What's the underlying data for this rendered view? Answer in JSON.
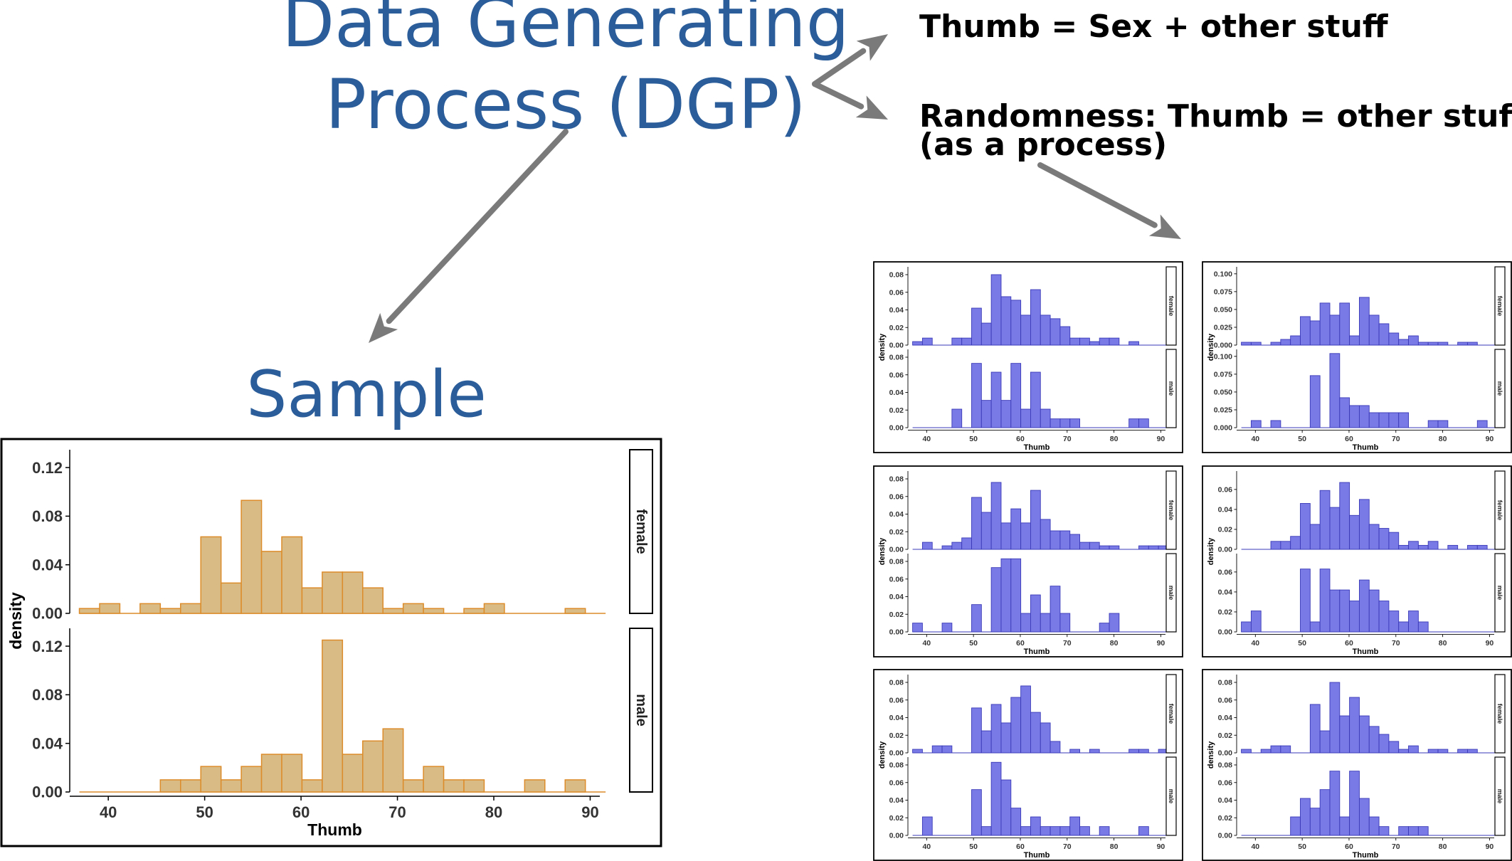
{
  "diagram": {
    "title_line1": "Data Generating",
    "title_line2": "Process (DGP)",
    "sample_label": "Sample",
    "model_text": "Thumb = Sex + other stuff",
    "randomness_line1": "Randomness: Thumb = other stuff",
    "randomness_line2": "(as a process)",
    "title_color": "#2a5d9a",
    "arrow_color": "#7a7a7a",
    "sample_fill": "#d9bb86",
    "sample_stroke": "#dc8c2a",
    "sim_fill": "#7a7ae6",
    "sim_stroke": "#3a3ab8"
  },
  "chart_data": [
    {
      "type": "bar",
      "role": "sample",
      "xlabel": "Thumb",
      "ylabel": "density",
      "xlim": [
        36,
        91
      ],
      "xticks": [
        40,
        50,
        60,
        70,
        80,
        90
      ],
      "bin_start": 37,
      "bin_width": 2.1,
      "panels": [
        {
          "label": "female",
          "ylim": [
            0,
            0.13
          ],
          "yticks": [
            "0.00",
            "0.04",
            "0.08",
            "0.12"
          ],
          "values": [
            0.004,
            0.008,
            0,
            0.008,
            0.004,
            0.008,
            0.063,
            0.025,
            0.093,
            0.051,
            0.063,
            0.021,
            0.034,
            0.034,
            0.021,
            0.004,
            0.008,
            0.004,
            0,
            0.004,
            0.008,
            0,
            0,
            0,
            0.004,
            0
          ]
        },
        {
          "label": "male",
          "ylim": [
            0,
            0.13
          ],
          "yticks": [
            "0.00",
            "0.04",
            "0.08",
            "0.12"
          ],
          "values": [
            0,
            0,
            0,
            0,
            0.01,
            0.01,
            0.021,
            0.01,
            0.021,
            0.031,
            0.031,
            0.01,
            0.125,
            0.031,
            0.042,
            0.052,
            0.01,
            0.021,
            0.01,
            0.01,
            0,
            0,
            0.01,
            0,
            0.01,
            0
          ]
        }
      ]
    },
    {
      "type": "bar",
      "role": "simulation",
      "xlabel": "Thumb",
      "ylabel": "density",
      "xlim": [
        36,
        91
      ],
      "xticks": [
        40,
        50,
        60,
        70,
        80,
        90
      ],
      "bin_start": 37,
      "bin_width": 2.1,
      "panels": [
        {
          "label": "female",
          "ylim": [
            0,
            0.085
          ],
          "yticks": [
            "0.00",
            "0.02",
            "0.04",
            "0.06",
            "0.08"
          ],
          "values": [
            0.004,
            0.008,
            0,
            0,
            0.008,
            0.008,
            0.042,
            0.025,
            0.08,
            0.055,
            0.051,
            0.034,
            0.063,
            0.034,
            0.03,
            0.021,
            0.008,
            0.008,
            0.004,
            0.008,
            0.008,
            0,
            0.004,
            0,
            0,
            0
          ]
        },
        {
          "label": "male",
          "ylim": [
            0,
            0.085
          ],
          "yticks": [
            "0.00",
            "0.02",
            "0.04",
            "0.06",
            "0.08"
          ],
          "values": [
            0,
            0,
            0,
            0,
            0.021,
            0,
            0.073,
            0.031,
            0.063,
            0.031,
            0.073,
            0.021,
            0.063,
            0.021,
            0.01,
            0.01,
            0.01,
            0,
            0,
            0,
            0,
            0,
            0.01,
            0.01,
            0,
            0
          ]
        }
      ]
    },
    {
      "type": "bar",
      "role": "simulation",
      "xlabel": "Thumb",
      "ylabel": "density",
      "xlim": [
        36,
        91
      ],
      "xticks": [
        40,
        50,
        60,
        70,
        80,
        90
      ],
      "bin_start": 37,
      "bin_width": 2.1,
      "panels": [
        {
          "label": "female",
          "ylim": [
            0,
            0.105
          ],
          "yticks": [
            "0.000",
            "0.025",
            "0.050",
            "0.075",
            "0.100"
          ],
          "values": [
            0.004,
            0.004,
            0,
            0.004,
            0.008,
            0.013,
            0.04,
            0.034,
            0.059,
            0.042,
            0.059,
            0.013,
            0.067,
            0.042,
            0.03,
            0.017,
            0.008,
            0.013,
            0.004,
            0.004,
            0.004,
            0,
            0.004,
            0.004,
            0,
            0
          ]
        },
        {
          "label": "male",
          "ylim": [
            0,
            0.105
          ],
          "yticks": [
            "0.000",
            "0.025",
            "0.050",
            "0.075",
            "0.100"
          ],
          "values": [
            0,
            0.01,
            0,
            0.01,
            0,
            0,
            0,
            0.073,
            0,
            0.104,
            0.042,
            0.031,
            0.031,
            0.021,
            0.021,
            0.021,
            0.021,
            0,
            0,
            0.01,
            0.01,
            0,
            0,
            0,
            0.01,
            0
          ]
        }
      ]
    },
    {
      "type": "bar",
      "role": "simulation",
      "xlabel": "Thumb",
      "ylabel": "density",
      "xlim": [
        36,
        91
      ],
      "xticks": [
        40,
        50,
        60,
        70,
        80,
        90
      ],
      "bin_start": 37,
      "bin_width": 2.1,
      "panels": [
        {
          "label": "female",
          "ylim": [
            0,
            0.085
          ],
          "yticks": [
            "0.00",
            "0.02",
            "0.04",
            "0.06",
            "0.08"
          ],
          "values": [
            0,
            0.008,
            0,
            0.004,
            0.008,
            0.013,
            0.059,
            0.042,
            0.076,
            0.03,
            0.046,
            0.03,
            0.067,
            0.034,
            0.021,
            0.021,
            0.017,
            0.008,
            0.008,
            0.004,
            0.004,
            0,
            0,
            0.004,
            0.004,
            0.004
          ]
        },
        {
          "label": "male",
          "ylim": [
            0,
            0.085
          ],
          "yticks": [
            "0.00",
            "0.02",
            "0.04",
            "0.06",
            "0.08"
          ],
          "values": [
            0.01,
            0,
            0,
            0.01,
            0,
            0,
            0.031,
            0,
            0.073,
            0.083,
            0.083,
            0.021,
            0.042,
            0.021,
            0.052,
            0.021,
            0,
            0,
            0,
            0.01,
            0.021,
            0,
            0,
            0,
            0,
            0
          ]
        }
      ]
    },
    {
      "type": "bar",
      "role": "simulation",
      "xlabel": "Thumb",
      "ylabel": "density",
      "xlim": [
        36,
        91
      ],
      "xticks": [
        40,
        50,
        60,
        70,
        80,
        90
      ],
      "bin_start": 37,
      "bin_width": 2.1,
      "panels": [
        {
          "label": "female",
          "ylim": [
            0,
            0.075
          ],
          "yticks": [
            "0.00",
            "0.02",
            "0.04",
            "0.06"
          ],
          "values": [
            0,
            0,
            0,
            0.008,
            0.008,
            0.013,
            0.046,
            0.025,
            0.059,
            0.042,
            0.067,
            0.034,
            0.05,
            0.025,
            0.021,
            0.017,
            0.004,
            0.008,
            0.004,
            0.008,
            0,
            0.004,
            0,
            0.004,
            0.004,
            0
          ]
        },
        {
          "label": "male",
          "ylim": [
            0,
            0.075
          ],
          "yticks": [
            "0.00",
            "0.02",
            "0.04",
            "0.06"
          ],
          "values": [
            0.01,
            0.021,
            0,
            0,
            0,
            0,
            0.063,
            0.01,
            0.063,
            0.042,
            0.042,
            0.031,
            0.052,
            0.042,
            0.031,
            0.021,
            0.01,
            0.021,
            0.01,
            0,
            0,
            0,
            0,
            0,
            0,
            0
          ]
        }
      ]
    },
    {
      "type": "bar",
      "role": "simulation",
      "xlabel": "Thumb",
      "ylabel": "density",
      "xlim": [
        36,
        91
      ],
      "xticks": [
        40,
        50,
        60,
        70,
        80,
        90
      ],
      "bin_start": 37,
      "bin_width": 2.1,
      "panels": [
        {
          "label": "female",
          "ylim": [
            0,
            0.085
          ],
          "yticks": [
            "0.00",
            "0.02",
            "0.04",
            "0.06",
            "0.08"
          ],
          "values": [
            0.004,
            0,
            0.008,
            0.008,
            0,
            0,
            0.051,
            0.025,
            0.055,
            0.034,
            0.063,
            0.076,
            0.046,
            0.034,
            0.013,
            0,
            0.004,
            0,
            0.004,
            0,
            0,
            0,
            0.004,
            0.004,
            0,
            0.004
          ]
        },
        {
          "label": "male",
          "ylim": [
            0,
            0.085
          ],
          "yticks": [
            "0.00",
            "0.02",
            "0.04",
            "0.06",
            "0.08"
          ],
          "values": [
            0,
            0.021,
            0,
            0,
            0,
            0,
            0.052,
            0.01,
            0.083,
            0.063,
            0.031,
            0.01,
            0.021,
            0.01,
            0.01,
            0.01,
            0.021,
            0.01,
            0,
            0.01,
            0,
            0,
            0,
            0.01,
            0,
            0
          ]
        }
      ]
    },
    {
      "type": "bar",
      "role": "simulation",
      "xlabel": "Thumb",
      "ylabel": "density",
      "xlim": [
        36,
        91
      ],
      "xticks": [
        40,
        50,
        60,
        70,
        80,
        90
      ],
      "bin_start": 37,
      "bin_width": 2.1,
      "panels": [
        {
          "label": "female",
          "ylim": [
            0,
            0.085
          ],
          "yticks": [
            "0.00",
            "0.02",
            "0.04",
            "0.06",
            "0.08"
          ],
          "values": [
            0.004,
            0,
            0.004,
            0.008,
            0.008,
            0,
            0,
            0.055,
            0.025,
            0.08,
            0.042,
            0.063,
            0.042,
            0.03,
            0.021,
            0.013,
            0.004,
            0.008,
            0,
            0.004,
            0.004,
            0,
            0.004,
            0.004,
            0,
            0
          ]
        },
        {
          "label": "male",
          "ylim": [
            0,
            0.085
          ],
          "yticks": [
            "0.00",
            "0.02",
            "0.04",
            "0.06",
            "0.08"
          ],
          "values": [
            0,
            0,
            0,
            0,
            0,
            0.021,
            0.042,
            0.031,
            0.052,
            0.073,
            0.021,
            0.073,
            0.042,
            0.021,
            0.01,
            0,
            0.01,
            0.01,
            0.01,
            0,
            0,
            0,
            0,
            0,
            0,
            0
          ]
        }
      ]
    }
  ]
}
